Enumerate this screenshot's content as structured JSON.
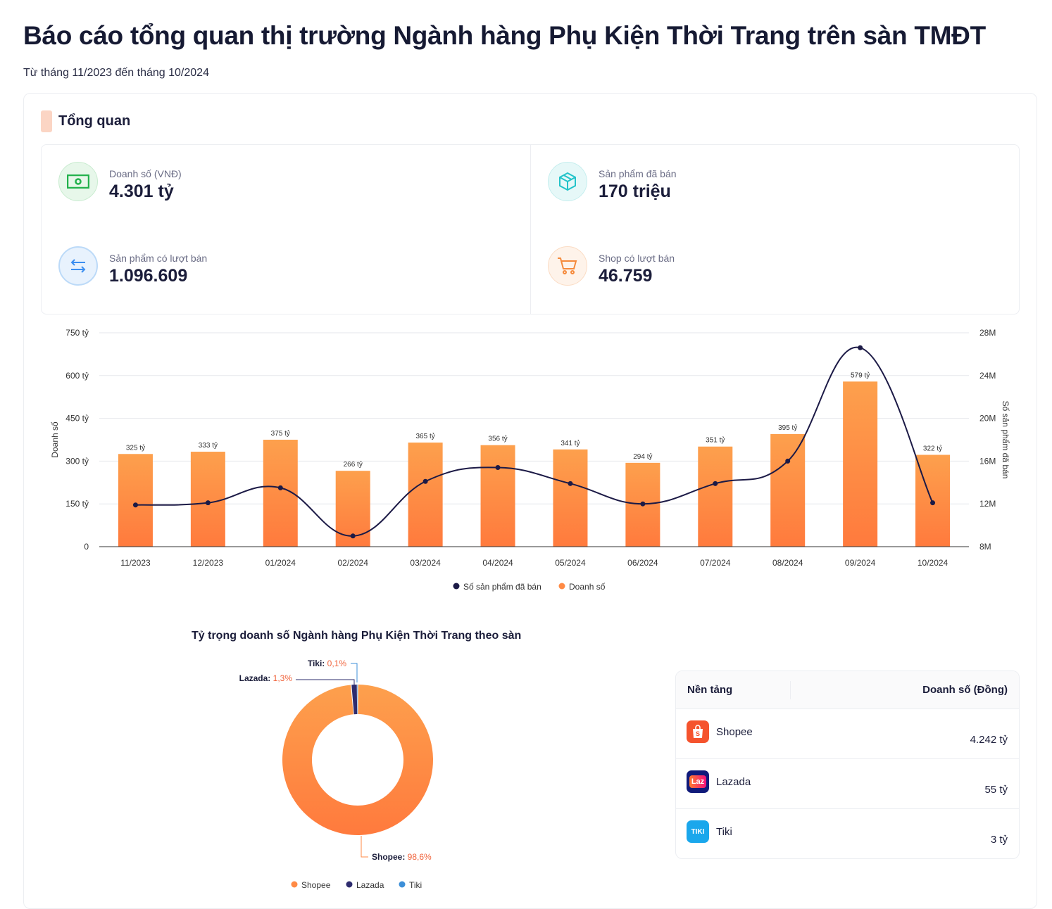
{
  "title": "Báo cáo tổng quan thị trường Ngành hàng Phụ Kiện Thời Trang trên sàn TMĐT",
  "subtitle": "Từ tháng 11/2023 đến tháng 10/2024",
  "section": "Tổng quan",
  "stats": [
    {
      "label": "Doanh số (VNĐ)",
      "value": "4.301 tỷ",
      "icon": "money-icon",
      "color": "#22b14c"
    },
    {
      "label": "Sản phẩm đã bán",
      "value": "170 triệu",
      "icon": "box-icon",
      "color": "#22c3c9"
    },
    {
      "label": "Sản phẩm có lượt bán",
      "value": "1.096.609",
      "icon": "transfer-arrows-icon",
      "color": "#3b8ef0"
    },
    {
      "label": "Shop có lượt bán",
      "value": "46.759",
      "icon": "cart-icon",
      "color": "#f58a3b"
    }
  ],
  "chart_data": [
    {
      "type": "bar+line",
      "categories": [
        "11/2023",
        "12/2023",
        "01/2024",
        "02/2024",
        "03/2024",
        "04/2024",
        "05/2024",
        "06/2024",
        "07/2024",
        "08/2024",
        "09/2024",
        "10/2024"
      ],
      "series": [
        {
          "name": "Doanh số",
          "type": "bar",
          "axis": "left",
          "values": [
            325,
            333,
            375,
            266,
            365,
            356,
            341,
            294,
            351,
            395,
            579,
            322
          ],
          "labels": [
            "325 tỷ",
            "333 tỷ",
            "375 tỷ",
            "266 tỷ",
            "365 tỷ",
            "356 tỷ",
            "341 tỷ",
            "294 tỷ",
            "351 tỷ",
            "395 tỷ",
            "579 tỷ",
            "322 tỷ"
          ],
          "color": "#ff8a45"
        },
        {
          "name": "Số sản phẩm đã bán",
          "type": "line",
          "axis": "right",
          "values": [
            11.9,
            12.1,
            13.5,
            9.0,
            14.1,
            15.4,
            13.9,
            12.0,
            13.9,
            16.0,
            26.6,
            12.1
          ],
          "color": "#1c1a46"
        }
      ],
      "ylabel": "Doanh số",
      "y2label": "Số sản phẩm đã bán",
      "ylim": [
        0,
        750
      ],
      "yticks": [
        "0",
        "150 tỷ",
        "300 tỷ",
        "450 tỷ",
        "600 tỷ",
        "750 tỷ"
      ],
      "y2lim": [
        8,
        28
      ],
      "y2ticks": [
        "8M",
        "12M",
        "16M",
        "20M",
        "24M",
        "28M"
      ],
      "grid": true,
      "legend": "bottom",
      "legend_items": [
        "Số sản phẩm đã bán",
        "Doanh số"
      ]
    },
    {
      "type": "pie",
      "title": "Tỷ trọng doanh số Ngành hàng Phụ Kiện Thời Trang theo sàn",
      "slices": [
        {
          "name": "Shopee",
          "value": 98.6,
          "label": "98,6%",
          "color": "#ff8a45"
        },
        {
          "name": "Lazada",
          "value": 1.3,
          "label": "1,3%",
          "color": "#2e2c6e"
        },
        {
          "name": "Tiki",
          "value": 0.1,
          "label": "0,1%",
          "color": "#3d8fd8"
        }
      ],
      "legend": "bottom"
    }
  ],
  "table": {
    "headers": [
      "Nền tảng",
      "Doanh số (Đồng)"
    ],
    "rows": [
      {
        "platform": "Shopee",
        "value": "4.242 tỷ",
        "logo": "shopee-logo",
        "color": "#f5532d"
      },
      {
        "platform": "Lazada",
        "value": "55 tỷ",
        "logo": "lazada-logo",
        "logo_text": "Laz",
        "color": "#101a7a"
      },
      {
        "platform": "Tiki",
        "value": "3 tỷ",
        "logo": "tiki-logo",
        "logo_text": "TIKI",
        "color": "#1aa7ec"
      }
    ]
  }
}
